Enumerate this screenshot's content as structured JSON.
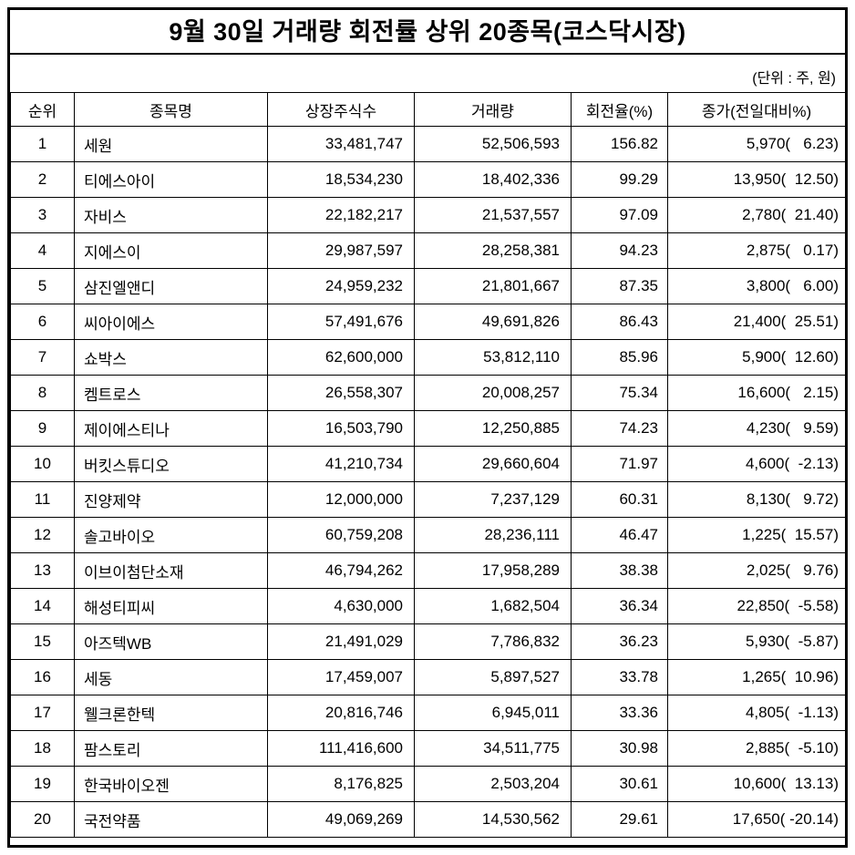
{
  "title": "9월 30일 거래량 회전률 상위 20종목(코스닥시장)",
  "unit_note": "(단위 : 주, 원)",
  "table": {
    "headers": [
      "순위",
      "종목명",
      "상장주식수",
      "거래량",
      "회전율(%)",
      "종가(전일대비%)"
    ],
    "column_keys": [
      "rank",
      "stock_name",
      "listed_shares",
      "volume",
      "turnover_pct",
      "close_price_change"
    ],
    "rows": [
      [
        "1",
        "세원",
        "33,481,747",
        "52,506,593",
        "156.82",
        "5,970(   6.23)"
      ],
      [
        "2",
        "티에스아이",
        "18,534,230",
        "18,402,336",
        "99.29",
        "13,950(  12.50)"
      ],
      [
        "3",
        "자비스",
        "22,182,217",
        "21,537,557",
        "97.09",
        "2,780(  21.40)"
      ],
      [
        "4",
        "지에스이",
        "29,987,597",
        "28,258,381",
        "94.23",
        "2,875(   0.17)"
      ],
      [
        "5",
        "삼진엘앤디",
        "24,959,232",
        "21,801,667",
        "87.35",
        "3,800(   6.00)"
      ],
      [
        "6",
        "씨아이에스",
        "57,491,676",
        "49,691,826",
        "86.43",
        "21,400(  25.51)"
      ],
      [
        "7",
        "쇼박스",
        "62,600,000",
        "53,812,110",
        "85.96",
        "5,900(  12.60)"
      ],
      [
        "8",
        "켐트로스",
        "26,558,307",
        "20,008,257",
        "75.34",
        "16,600(   2.15)"
      ],
      [
        "9",
        "제이에스티나",
        "16,503,790",
        "12,250,885",
        "74.23",
        "4,230(   9.59)"
      ],
      [
        "10",
        "버킷스튜디오",
        "41,210,734",
        "29,660,604",
        "71.97",
        "4,600(  -2.13)"
      ],
      [
        "11",
        "진양제약",
        "12,000,000",
        "7,237,129",
        "60.31",
        "8,130(   9.72)"
      ],
      [
        "12",
        "솔고바이오",
        "60,759,208",
        "28,236,111",
        "46.47",
        "1,225(  15.57)"
      ],
      [
        "13",
        "이브이첨단소재",
        "46,794,262",
        "17,958,289",
        "38.38",
        "2,025(   9.76)"
      ],
      [
        "14",
        "해성티피씨",
        "4,630,000",
        "1,682,504",
        "36.34",
        "22,850(  -5.58)"
      ],
      [
        "15",
        "아즈텍WB",
        "21,491,029",
        "7,786,832",
        "36.23",
        "5,930(  -5.87)"
      ],
      [
        "16",
        "세동",
        "17,459,007",
        "5,897,527",
        "33.78",
        "1,265(  10.96)"
      ],
      [
        "17",
        "웰크론한텍",
        "20,816,746",
        "6,945,011",
        "33.36",
        "4,805(  -1.13)"
      ],
      [
        "18",
        "팜스토리",
        "111,416,600",
        "34,511,775",
        "30.98",
        "2,885(  -5.10)"
      ],
      [
        "19",
        "한국바이오젠",
        "8,176,825",
        "2,503,204",
        "30.61",
        "10,600(  13.13)"
      ],
      [
        "20",
        "국전약품",
        "49,069,269",
        "14,530,562",
        "29.61",
        "17,650( -20.14)"
      ]
    ]
  }
}
